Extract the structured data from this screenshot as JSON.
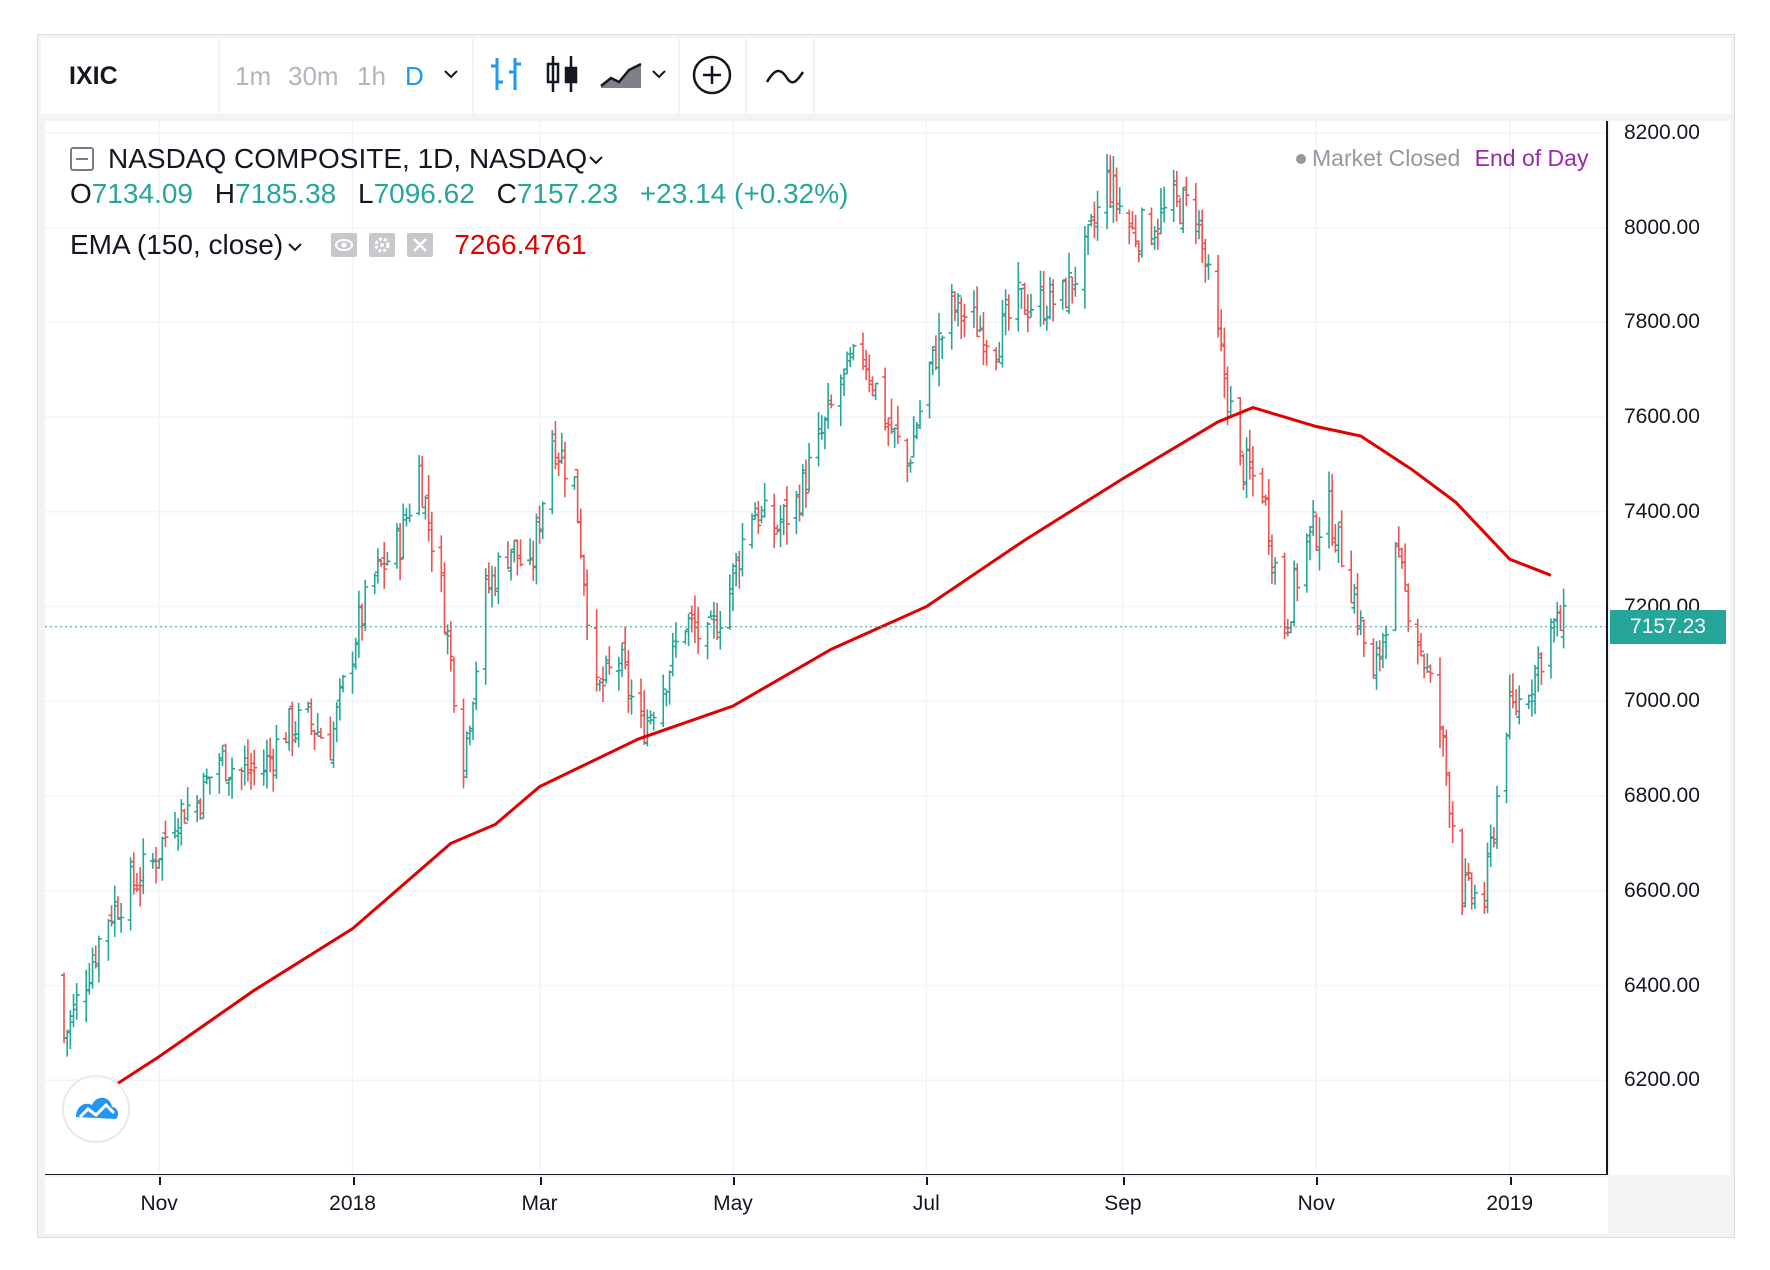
{
  "toolbar": {
    "symbol": "IXIC",
    "intervals": [
      "1m",
      "30m",
      "1h",
      "D"
    ],
    "active_interval": "D",
    "chart_type_icons": [
      "bars-icon",
      "candles-icon",
      "area-icon"
    ],
    "add_icon": "plus-circle-icon",
    "indicator_icon": "indicator-wave-icon"
  },
  "legend": {
    "title": "NASDAQ COMPOSITE, 1D, NASDAQ",
    "o_label": "O",
    "o": "7134.09",
    "h_label": "H",
    "h": "7185.38",
    "l_label": "L",
    "l": "7096.62",
    "c_label": "C",
    "c": "7157.23",
    "change": "+23.14 (+0.32%)",
    "ema_label": "EMA (150, close)",
    "ema_value": "7266.4761",
    "market_status": "Market Closed",
    "end_of_day": "End of Day",
    "last_price_label": "7157.23"
  },
  "colors": {
    "up": "#26a69a",
    "down": "#ef5350",
    "ema": "#e00000",
    "accent": "#2196f3",
    "end_of_day": "#9c27b0"
  },
  "chart_data": {
    "type": "ohlc-bar",
    "title": "NASDAQ COMPOSITE, 1D, NASDAQ",
    "ylim": [
      6000,
      8225
    ],
    "y_ticks": [
      "6200.00",
      "6400.00",
      "6600.00",
      "6800.00",
      "7000.00",
      "7200.00",
      "7400.00",
      "7600.00",
      "7800.00",
      "8000.00",
      "8200.00"
    ],
    "x_ticks": [
      "Nov",
      "2018",
      "Mar",
      "May",
      "Jul",
      "Sep",
      "Nov",
      "2019"
    ],
    "last_price": 7157.23,
    "close_series": {
      "name": "IXIC close",
      "x": [
        "2017-10-09",
        "2017-10-16",
        "2017-10-23",
        "2017-10-30",
        "2017-11-06",
        "2017-11-13",
        "2017-11-20",
        "2017-11-27",
        "2017-12-04",
        "2017-12-11",
        "2017-12-18",
        "2017-12-25",
        "2018-01-02",
        "2018-01-08",
        "2018-01-16",
        "2018-01-22",
        "2018-01-29",
        "2018-02-05",
        "2018-02-12",
        "2018-02-20",
        "2018-02-26",
        "2018-03-05",
        "2018-03-12",
        "2018-03-19",
        "2018-03-26",
        "2018-04-02",
        "2018-04-09",
        "2018-04-16",
        "2018-04-23",
        "2018-04-30",
        "2018-05-07",
        "2018-05-14",
        "2018-05-21",
        "2018-05-29",
        "2018-06-04",
        "2018-06-11",
        "2018-06-18",
        "2018-06-25",
        "2018-07-02",
        "2018-07-09",
        "2018-07-16",
        "2018-07-23",
        "2018-07-30",
        "2018-08-06",
        "2018-08-13",
        "2018-08-20",
        "2018-08-27",
        "2018-09-04",
        "2018-09-10",
        "2018-09-17",
        "2018-09-24",
        "2018-10-01",
        "2018-10-08",
        "2018-10-15",
        "2018-10-22",
        "2018-10-29",
        "2018-11-05",
        "2018-11-12",
        "2018-11-19",
        "2018-11-26",
        "2018-12-03",
        "2018-12-10",
        "2018-12-17",
        "2018-12-24",
        "2018-12-31",
        "2019-01-07",
        "2019-01-14"
      ],
      "values": [
        6420,
        6550,
        6610,
        6660,
        6760,
        6790,
        6880,
        6850,
        6860,
        6940,
        6960,
        6910,
        7140,
        7260,
        7340,
        7490,
        7240,
        6880,
        7230,
        7330,
        7260,
        7560,
        7460,
        7010,
        7090,
        6940,
        7040,
        7170,
        7120,
        7240,
        7410,
        7360,
        7420,
        7560,
        7670,
        7740,
        7600,
        7500,
        7700,
        7830,
        7800,
        7760,
        7840,
        7840,
        7850,
        7940,
        8100,
        7990,
        8000,
        8050,
        8040,
        7760,
        7500,
        7450,
        7160,
        7340,
        7400,
        7250,
        7030,
        7300,
        7140,
        6950,
        6600,
        6580,
        6960,
        7030,
        7157
      ]
    },
    "ema": {
      "name": "EMA (150, close)",
      "x": [
        "2017-10-02",
        "2017-11-01",
        "2017-12-01",
        "2018-01-01",
        "2018-02-01",
        "2018-02-15",
        "2018-03-01",
        "2018-04-01",
        "2018-05-01",
        "2018-06-01",
        "2018-07-01",
        "2018-08-01",
        "2018-09-01",
        "2018-10-01",
        "2018-10-12",
        "2018-11-01",
        "2018-11-15",
        "2018-12-01",
        "2018-12-15",
        "2019-01-01",
        "2019-01-14"
      ],
      "values": [
        6120,
        6250,
        6390,
        6520,
        6700,
        6740,
        6820,
        6920,
        6990,
        7110,
        7200,
        7340,
        7470,
        7590,
        7620,
        7580,
        7560,
        7490,
        7420,
        7300,
        7266
      ]
    }
  }
}
